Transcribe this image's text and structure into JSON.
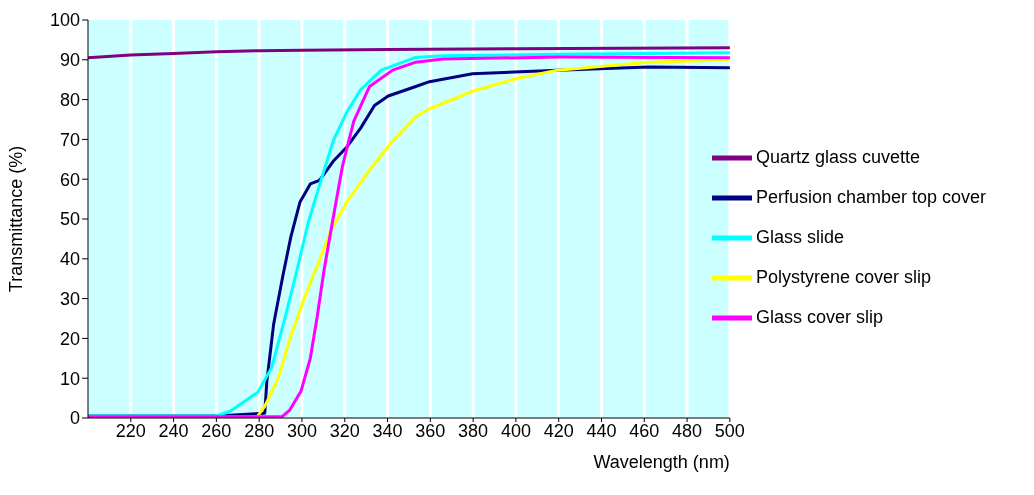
{
  "chart_data": {
    "type": "line",
    "xlabel": "Wavelength (nm)",
    "ylabel": "Transmittance (%)",
    "xlim": [
      200,
      500
    ],
    "xticks": [
      220,
      240,
      260,
      280,
      300,
      320,
      340,
      360,
      380,
      400,
      420,
      440,
      460,
      480,
      500
    ],
    "ylim": [
      0,
      100
    ],
    "yticks": [
      0,
      10,
      20,
      30,
      40,
      50,
      60,
      70,
      80,
      90,
      100
    ],
    "grid": "x",
    "legend": "right",
    "marker": "none",
    "line_style": "solid",
    "series": [
      {
        "name": "Quartz glass cuvette",
        "color": "#800080",
        "x": [
          200,
          220,
          240,
          260,
          280,
          300,
          340,
          400,
          500
        ],
        "values": [
          90.5,
          91.2,
          91.6,
          92,
          92.3,
          92.4,
          92.6,
          92.8,
          93
        ]
      },
      {
        "name": "Perfusion chamber top cover",
        "color": "#000080",
        "x": [
          200,
          260,
          282.6,
          283.6,
          286.8,
          291.1,
          294.8,
          299.1,
          303.9,
          308.2,
          314.6,
          321,
          327.5,
          333.9,
          340.3,
          353.2,
          359.6,
          379.7,
          419.5,
          462,
          500
        ],
        "values": [
          0.5,
          0.5,
          1.2,
          9.3,
          23.7,
          35.8,
          45.5,
          54.3,
          58.8,
          59.7,
          64.5,
          68.1,
          72.9,
          78.5,
          80.9,
          83.3,
          84.5,
          86.5,
          87.4,
          88.2,
          88
        ]
      },
      {
        "name": "Glass slide",
        "color": "#00ffff",
        "x": [
          200,
          260,
          266.5,
          279.4,
          285.8,
          292.2,
          297.5,
          302.8,
          308.2,
          314.6,
          321,
          327.5,
          337.1,
          353.2,
          366,
          420,
          500
        ],
        "values": [
          0.5,
          0.5,
          1.7,
          6.5,
          12.6,
          25.4,
          36.7,
          48.8,
          58.5,
          69.6,
          76.9,
          82.5,
          87.4,
          90.6,
          91,
          91.4,
          91.8
        ]
      },
      {
        "name": "Polystyrene cover slip",
        "color": "#ffff00",
        "x": [
          200,
          279,
          282.6,
          289,
          294.3,
          300.7,
          307.1,
          313.6,
          321,
          331.7,
          342.4,
          353.2,
          359.6,
          379.7,
          400.2,
          419.5,
          462,
          500
        ],
        "values": [
          0.2,
          0.3,
          2.9,
          10.1,
          19.8,
          29.5,
          38.2,
          47.1,
          54.3,
          62.4,
          69.6,
          75.7,
          77.7,
          82.1,
          85.3,
          87.4,
          89.4,
          90
        ]
      },
      {
        "name": "Glass cover slip",
        "color": "#ff00ff",
        "x": [
          200,
          290.6,
          294.3,
          299.6,
          303.9,
          307.1,
          310.4,
          314.6,
          318.9,
          324.2,
          331.6,
          342.4,
          353.2,
          366,
          420,
          500
        ],
        "values": [
          0.3,
          0.3,
          2,
          6.8,
          15,
          25.4,
          37.4,
          50.3,
          63.2,
          74.5,
          83.3,
          87.4,
          89.4,
          90.2,
          90.7,
          90.5
        ]
      }
    ]
  }
}
